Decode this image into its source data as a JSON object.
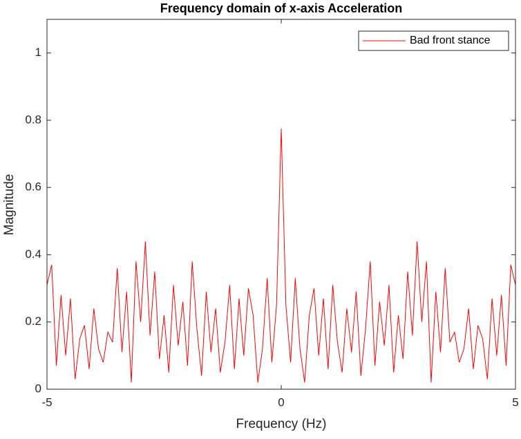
{
  "chart_data": {
    "type": "line",
    "title": "Frequency domain of x-axis Acceleration",
    "xlabel": "Frequency (Hz)",
    "ylabel": "Magnitude",
    "x": [
      -5.0,
      -4.9,
      -4.8,
      -4.7,
      -4.6,
      -4.5,
      -4.4,
      -4.3,
      -4.2,
      -4.1,
      -4.0,
      -3.9,
      -3.8,
      -3.7,
      -3.6,
      -3.5,
      -3.4,
      -3.3,
      -3.2,
      -3.1,
      -3.0,
      -2.9,
      -2.8,
      -2.7,
      -2.6,
      -2.5,
      -2.4,
      -2.3,
      -2.2,
      -2.1,
      -2.0,
      -1.9,
      -1.8,
      -1.7,
      -1.6,
      -1.5,
      -1.4,
      -1.3,
      -1.2,
      -1.1,
      -1.0,
      -0.9,
      -0.8,
      -0.7,
      -0.6,
      -0.5,
      -0.4,
      -0.3,
      -0.2,
      -0.1,
      0,
      0.1,
      0.2,
      0.3,
      0.4,
      0.5,
      0.6,
      0.7,
      0.8,
      0.9,
      1.0,
      1.1,
      1.2,
      1.3,
      1.4,
      1.5,
      1.6,
      1.7,
      1.8,
      1.9,
      2.0,
      2.1,
      2.2,
      2.3,
      2.4,
      2.5,
      2.6,
      2.7,
      2.8,
      2.9,
      3.0,
      3.1,
      3.2,
      3.3,
      3.4,
      3.5,
      3.6,
      3.7,
      3.8,
      3.9,
      4.0,
      4.1,
      4.2,
      4.3,
      4.4,
      4.5,
      4.6,
      4.7,
      4.8,
      4.9,
      5.0
    ],
    "series": [
      {
        "name": "Bad front stance",
        "color": "#ff0000",
        "values": [
          0.31,
          0.37,
          0.07,
          0.28,
          0.1,
          0.27,
          0.03,
          0.15,
          0.19,
          0.06,
          0.24,
          0.12,
          0.08,
          0.17,
          0.14,
          0.36,
          0.11,
          0.29,
          0.02,
          0.38,
          0.2,
          0.44,
          0.16,
          0.35,
          0.09,
          0.22,
          0.05,
          0.31,
          0.13,
          0.26,
          0.07,
          0.38,
          0.18,
          0.04,
          0.29,
          0.11,
          0.24,
          0.05,
          0.14,
          0.31,
          0.06,
          0.27,
          0.1,
          0.3,
          0.22,
          0.02,
          0.12,
          0.33,
          0.08,
          0.25,
          0.775,
          0.25,
          0.08,
          0.33,
          0.12,
          0.02,
          0.22,
          0.3,
          0.1,
          0.27,
          0.06,
          0.31,
          0.14,
          0.05,
          0.24,
          0.11,
          0.29,
          0.04,
          0.18,
          0.38,
          0.07,
          0.26,
          0.13,
          0.31,
          0.05,
          0.22,
          0.09,
          0.35,
          0.16,
          0.44,
          0.2,
          0.38,
          0.02,
          0.29,
          0.11,
          0.36,
          0.14,
          0.17,
          0.08,
          0.12,
          0.24,
          0.06,
          0.19,
          0.15,
          0.03,
          0.27,
          0.1,
          0.28,
          0.07,
          0.37,
          0.31
        ]
      }
    ],
    "xlim": [
      -5,
      5
    ],
    "xticks": [
      -5,
      0,
      5
    ],
    "ylim": [
      0,
      1.1
    ],
    "yticks": [
      0,
      0.2,
      0.4,
      0.6,
      0.8,
      1
    ],
    "grid": false,
    "legend": "northeast"
  }
}
